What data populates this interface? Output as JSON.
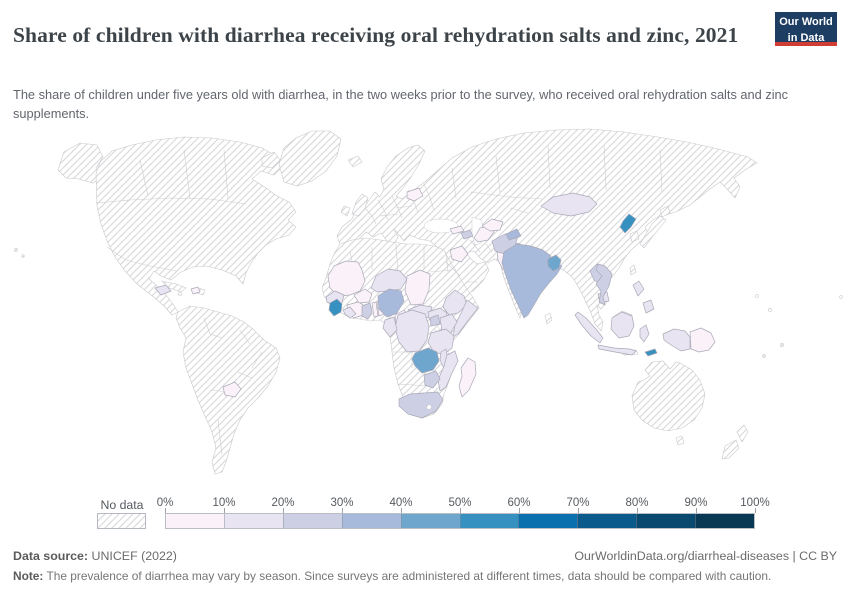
{
  "header": {
    "title": "Share of children with diarrhea receiving oral rehydration salts and zinc, 2021",
    "subtitle": "The share of children under five years old with diarrhea, in the two weeks prior to the survey, who received oral rehydration salts and zinc supplements.",
    "logo": {
      "line1": "Our World",
      "line2": "in Data",
      "brand_blue": "#1d3d63",
      "brand_red": "#cf3d34"
    }
  },
  "legend": {
    "no_data_label": "No data",
    "tick_labels": [
      "0%",
      "10%",
      "20%",
      "30%",
      "40%",
      "50%",
      "60%",
      "70%",
      "80%",
      "90%",
      "100%"
    ],
    "buckets": [
      {
        "range": "0-10%",
        "color": "#fbf1f8"
      },
      {
        "range": "10-20%",
        "color": "#e8e4f1"
      },
      {
        "range": "20-30%",
        "color": "#cdd0e5"
      },
      {
        "range": "30-40%",
        "color": "#a8badb"
      },
      {
        "range": "40-50%",
        "color": "#6fa6cd"
      },
      {
        "range": "50-60%",
        "color": "#3690c0"
      },
      {
        "range": "60-70%",
        "color": "#0b70ae"
      },
      {
        "range": "70-80%",
        "color": "#0b5a8c"
      },
      {
        "range": "80-90%",
        "color": "#09486f"
      },
      {
        "range": "90-100%",
        "color": "#083854"
      }
    ]
  },
  "footer": {
    "source_label": "Data source:",
    "source": "UNICEF (2022)",
    "link": "OurWorldinData.org/diarrheal-diseases | CC BY",
    "note_label": "Note:",
    "note": "The prevalence of diarrhea may vary by season. Since surveys are administered at different times, data should be compared with caution."
  },
  "chart_data": {
    "type": "choropleth_map",
    "title": "Share of children with diarrhea receiving oral rehydration salts and zinc",
    "year": "2021",
    "unit": "%",
    "legend_position": "bottom",
    "no_data_style": "hatched",
    "regions": [
      {
        "name": "Mali",
        "range": "0-10%"
      },
      {
        "name": "Burkina Faso",
        "range": "0-10%"
      },
      {
        "name": "Cote d'Ivoire",
        "range": "0-10%"
      },
      {
        "name": "Togo",
        "range": "0-10%"
      },
      {
        "name": "Benin",
        "range": "0-10%"
      },
      {
        "name": "Chad",
        "range": "0-10%"
      },
      {
        "name": "Cameroon",
        "range": "0-10%"
      },
      {
        "name": "Madagascar",
        "range": "0-10%"
      },
      {
        "name": "Paraguay",
        "range": "0-10%"
      },
      {
        "name": "Haiti",
        "range": "0-10%"
      },
      {
        "name": "Belarus",
        "range": "0-10%"
      },
      {
        "name": "Pakistan",
        "range": "0-10%"
      },
      {
        "name": "Turkmenistan",
        "range": "0-10%"
      },
      {
        "name": "Uzbekistan",
        "range": "0-10%"
      },
      {
        "name": "Iraq",
        "range": "0-10%"
      },
      {
        "name": "Georgia",
        "range": "0-10%"
      },
      {
        "name": "Papua New Guinea",
        "range": "0-10%"
      },
      {
        "name": "Guinea",
        "range": "10-20%"
      },
      {
        "name": "Liberia",
        "range": "10-20%"
      },
      {
        "name": "Niger",
        "range": "10-20%"
      },
      {
        "name": "Central African Republic",
        "range": "10-20%"
      },
      {
        "name": "South Sudan",
        "range": "10-20%"
      },
      {
        "name": "Ethiopia",
        "range": "10-20%"
      },
      {
        "name": "Somalia",
        "range": "10-20%"
      },
      {
        "name": "Kenya",
        "range": "10-20%"
      },
      {
        "name": "Democratic Republic of Congo",
        "range": "10-20%"
      },
      {
        "name": "Congo",
        "range": "10-20%"
      },
      {
        "name": "Tanzania",
        "range": "10-20%"
      },
      {
        "name": "Malawi",
        "range": "10-20%"
      },
      {
        "name": "Mozambique",
        "range": "10-20%"
      },
      {
        "name": "Honduras",
        "range": "10-20%"
      },
      {
        "name": "Mongolia",
        "range": "10-20%"
      },
      {
        "name": "Cambodia",
        "range": "10-20%"
      },
      {
        "name": "Philippines",
        "range": "10-20%"
      },
      {
        "name": "Indonesia",
        "range": "10-20%"
      },
      {
        "name": "Ghana",
        "range": "20-30%"
      },
      {
        "name": "Zimbabwe",
        "range": "20-30%"
      },
      {
        "name": "South Africa",
        "range": "20-30%"
      },
      {
        "name": "Uganda",
        "range": "20-30%"
      },
      {
        "name": "Nepal",
        "range": "20-30%"
      },
      {
        "name": "Afghanistan",
        "range": "20-30%"
      },
      {
        "name": "Azerbaijan",
        "range": "20-30%"
      },
      {
        "name": "Laos",
        "range": "20-30%"
      },
      {
        "name": "Vietnam",
        "range": "20-30%"
      },
      {
        "name": "Nigeria",
        "range": "30-40%"
      },
      {
        "name": "India",
        "range": "30-40%"
      },
      {
        "name": "Tajikistan",
        "range": "30-40%"
      },
      {
        "name": "Zambia",
        "range": "40-50%"
      },
      {
        "name": "Bangladesh",
        "range": "40-50%"
      },
      {
        "name": "Sierra Leone",
        "range": "50-60%"
      },
      {
        "name": "North Korea",
        "range": "50-60%"
      },
      {
        "name": "Timor-Leste",
        "range": "50-60%"
      }
    ]
  }
}
